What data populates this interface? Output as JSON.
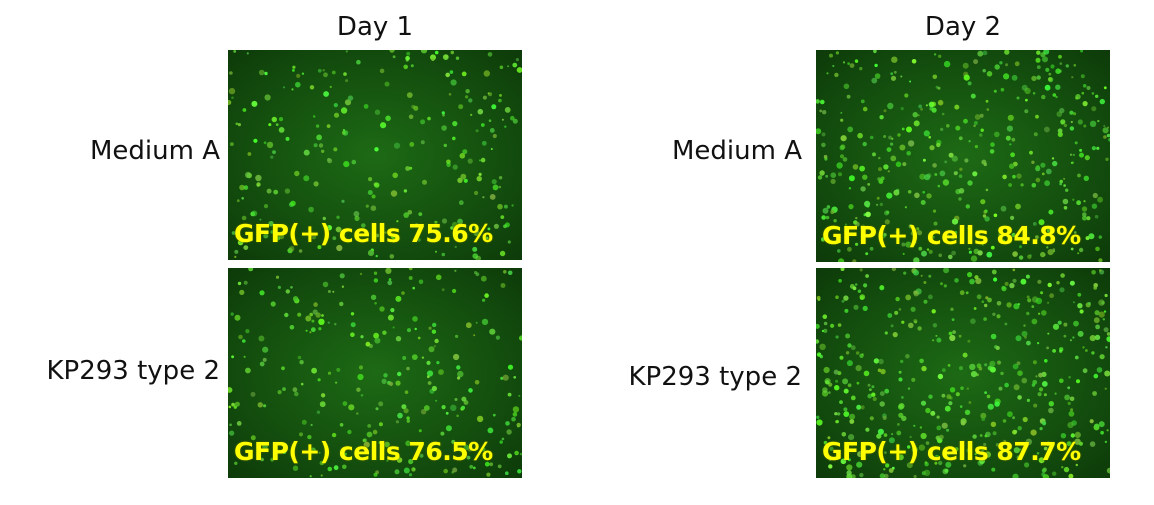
{
  "columns": [
    {
      "title": "Day 1",
      "rows": [
        {
          "label": "Medium A",
          "caption": "GFP(+) cells 75.6%",
          "value_percent": 75.6
        },
        {
          "label": "KP293 type 2",
          "caption": "GFP(+) cells 76.5%",
          "value_percent": 76.5
        }
      ]
    },
    {
      "title": "Day 2",
      "rows": [
        {
          "label": "Medium A",
          "caption": "GFP(+) cells 84.8%",
          "value_percent": 84.8
        },
        {
          "label": "KP293 type 2",
          "caption": "GFP(+) cells 87.7%",
          "value_percent": 87.7
        }
      ]
    }
  ],
  "colors": {
    "background": "#124a0d",
    "cell": "#7dff3a",
    "caption": "#ffff00"
  }
}
